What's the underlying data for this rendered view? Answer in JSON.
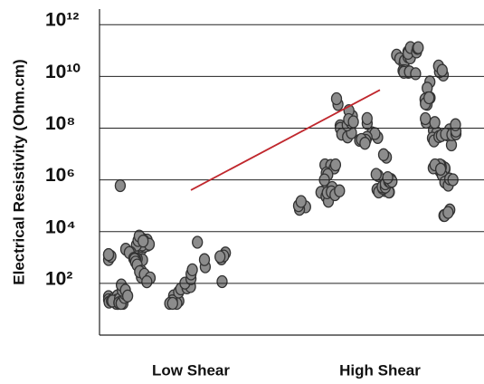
{
  "chart_data": {
    "type": "line",
    "y_label": "Electrical Resistivity (Ohm.cm)",
    "categories": [
      "Low Shear",
      "High Shear"
    ],
    "series": [
      {
        "color": "#c0272d",
        "values": [
          400000,
          3000000000
        ]
      }
    ],
    "log_y": true,
    "ylim": [
      1,
      4000000000000
    ],
    "yticks": [
      {
        "value": 100,
        "label": "10²"
      },
      {
        "value": 10000,
        "label": "10⁴"
      },
      {
        "value": 1000000,
        "label": "10⁶"
      },
      {
        "value": 100000000,
        "label": "10⁸"
      },
      {
        "value": 10000000000,
        "label": "10¹⁰"
      },
      {
        "value": 1000000000000,
        "label": "10¹²"
      }
    ],
    "grid": true
  }
}
